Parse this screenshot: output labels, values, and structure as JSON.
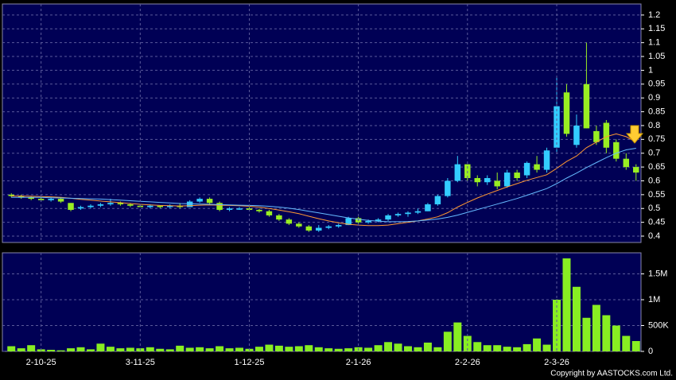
{
  "copyright": "Copyright by AASTOCKS.com Ltd.",
  "chart_data": [
    {
      "type": "candlestick",
      "up_color": "#33ccff",
      "down_color": "#99ee22",
      "grid": true,
      "ylim": [
        0.377,
        1.24
      ],
      "yticks": [
        0.4,
        0.45,
        0.5,
        0.55,
        0.6,
        0.65,
        0.7,
        0.75,
        0.8,
        0.85,
        0.9,
        0.95,
        1,
        1.05,
        1.1,
        1.15,
        1.2
      ],
      "open": [
        0.55,
        0.545,
        0.54,
        0.535,
        0.53,
        0.535,
        0.52,
        0.5,
        0.505,
        0.51,
        0.515,
        0.52,
        0.515,
        0.51,
        0.505,
        0.51,
        0.505,
        0.51,
        0.505,
        0.525,
        0.535,
        0.52,
        0.495,
        0.5,
        0.5,
        0.495,
        0.49,
        0.475,
        0.46,
        0.445,
        0.435,
        0.42,
        0.43,
        0.435,
        0.44,
        0.465,
        0.45,
        0.455,
        0.46,
        0.475,
        0.48,
        0.485,
        0.49,
        0.515,
        0.545,
        0.6,
        0.66,
        0.61,
        0.595,
        0.6,
        0.58,
        0.63,
        0.62,
        0.66,
        0.64,
        0.72,
        0.92,
        0.73,
        0.95,
        0.78,
        0.81,
        0.74,
        0.68,
        0.65
      ],
      "high": [
        0.555,
        0.55,
        0.545,
        0.54,
        0.54,
        0.54,
        0.52,
        0.51,
        0.515,
        0.52,
        0.535,
        0.525,
        0.52,
        0.515,
        0.515,
        0.51,
        0.515,
        0.52,
        0.53,
        0.54,
        0.54,
        0.525,
        0.505,
        0.505,
        0.505,
        0.5,
        0.495,
        0.48,
        0.465,
        0.45,
        0.44,
        0.44,
        0.44,
        0.445,
        0.47,
        0.47,
        0.46,
        0.465,
        0.48,
        0.485,
        0.49,
        0.5,
        0.52,
        0.55,
        0.61,
        0.69,
        0.66,
        0.62,
        0.62,
        0.63,
        0.64,
        0.64,
        0.67,
        0.69,
        0.72,
        0.98,
        0.95,
        0.84,
        1.1,
        0.8,
        0.82,
        0.75,
        0.7,
        0.66
      ],
      "low": [
        0.54,
        0.535,
        0.53,
        0.525,
        0.525,
        0.52,
        0.49,
        0.495,
        0.5,
        0.505,
        0.51,
        0.51,
        0.505,
        0.505,
        0.5,
        0.5,
        0.5,
        0.5,
        0.505,
        0.52,
        0.515,
        0.49,
        0.49,
        0.495,
        0.49,
        0.485,
        0.47,
        0.455,
        0.44,
        0.43,
        0.415,
        0.415,
        0.425,
        0.43,
        0.44,
        0.445,
        0.445,
        0.45,
        0.455,
        0.47,
        0.47,
        0.48,
        0.49,
        0.51,
        0.54,
        0.595,
        0.6,
        0.58,
        0.585,
        0.57,
        0.575,
        0.6,
        0.61,
        0.63,
        0.63,
        0.7,
        0.76,
        0.72,
        0.79,
        0.73,
        0.7,
        0.67,
        0.64,
        0.6
      ],
      "close": [
        0.545,
        0.54,
        0.535,
        0.53,
        0.535,
        0.525,
        0.495,
        0.505,
        0.51,
        0.515,
        0.52,
        0.515,
        0.51,
        0.505,
        0.51,
        0.505,
        0.51,
        0.505,
        0.525,
        0.535,
        0.52,
        0.495,
        0.5,
        0.5,
        0.495,
        0.49,
        0.475,
        0.46,
        0.445,
        0.435,
        0.42,
        0.43,
        0.435,
        0.44,
        0.465,
        0.45,
        0.455,
        0.46,
        0.475,
        0.48,
        0.485,
        0.49,
        0.515,
        0.545,
        0.6,
        0.66,
        0.61,
        0.595,
        0.61,
        0.58,
        0.63,
        0.61,
        0.665,
        0.64,
        0.71,
        0.87,
        0.77,
        0.8,
        0.79,
        0.74,
        0.72,
        0.68,
        0.65,
        0.63
      ],
      "series": [
        {
          "color": "#ff9933",
          "values": [
            0.545,
            0.545,
            0.544,
            0.543,
            0.542,
            0.54,
            0.537,
            0.533,
            0.53,
            0.527,
            0.524,
            0.521,
            0.518,
            0.515,
            0.513,
            0.511,
            0.51,
            0.509,
            0.51,
            0.512,
            0.513,
            0.512,
            0.511,
            0.51,
            0.508,
            0.505,
            0.5,
            0.494,
            0.488,
            0.481,
            0.472,
            0.463,
            0.455,
            0.448,
            0.443,
            0.44,
            0.438,
            0.438,
            0.44,
            0.445,
            0.45,
            0.455,
            0.462,
            0.47,
            0.485,
            0.505,
            0.522,
            0.538,
            0.552,
            0.565,
            0.578,
            0.59,
            0.602,
            0.612,
            0.622,
            0.645,
            0.67,
            0.69,
            0.72,
            0.74,
            0.76,
            0.77,
            0.76,
            0.74
          ]
        },
        {
          "color": "#66bbff",
          "values": [
            0.54,
            0.54,
            0.54,
            0.54,
            0.539,
            0.538,
            0.537,
            0.536,
            0.535,
            0.534,
            0.532,
            0.53,
            0.528,
            0.526,
            0.524,
            0.522,
            0.52,
            0.518,
            0.517,
            0.516,
            0.515,
            0.514,
            0.513,
            0.512,
            0.511,
            0.51,
            0.508,
            0.505,
            0.501,
            0.496,
            0.49,
            0.484,
            0.478,
            0.472,
            0.466,
            0.461,
            0.457,
            0.454,
            0.452,
            0.452,
            0.453,
            0.455,
            0.458,
            0.462,
            0.468,
            0.476,
            0.486,
            0.496,
            0.506,
            0.516,
            0.526,
            0.536,
            0.548,
            0.56,
            0.572,
            0.59,
            0.61,
            0.628,
            0.648,
            0.666,
            0.684,
            0.7,
            0.712,
            0.718
          ]
        }
      ]
    },
    {
      "type": "bar",
      "color": "#88ee22",
      "grid": true,
      "ylim": [
        0,
        1908000
      ],
      "yticks": [
        0,
        {
          "value": 500000,
          "label": "500K"
        },
        {
          "value": 1000000,
          "label": "1M"
        },
        {
          "value": 1500000,
          "label": "1.5M"
        }
      ],
      "categories": [
        null,
        null,
        null,
        "2-10-25",
        null,
        null,
        null,
        null,
        null,
        null,
        null,
        null,
        null,
        "3-11-25",
        null,
        null,
        null,
        null,
        null,
        null,
        null,
        null,
        null,
        null,
        "1-12-25",
        null,
        null,
        null,
        null,
        null,
        null,
        null,
        null,
        null,
        null,
        "2-1-26",
        null,
        null,
        null,
        null,
        null,
        null,
        null,
        null,
        null,
        null,
        "2-2-26",
        null,
        null,
        null,
        null,
        null,
        null,
        null,
        null,
        "2-3-26",
        null,
        null,
        null,
        null,
        null,
        null,
        null,
        null
      ],
      "values": [
        100000,
        60000,
        120000,
        40000,
        30000,
        20000,
        60000,
        80000,
        40000,
        150000,
        90000,
        60000,
        70000,
        60000,
        80000,
        50000,
        40000,
        110000,
        70000,
        80000,
        60000,
        100000,
        60000,
        70000,
        50000,
        90000,
        130000,
        110000,
        90000,
        100000,
        120000,
        80000,
        60000,
        50000,
        60000,
        80000,
        70000,
        120000,
        180000,
        150000,
        100000,
        80000,
        170000,
        80000,
        380000,
        560000,
        300000,
        180000,
        120000,
        120000,
        90000,
        80000,
        140000,
        250000,
        130000,
        1000000,
        1800000,
        1250000,
        650000,
        900000,
        700000,
        500000,
        300000,
        200000
      ]
    }
  ]
}
